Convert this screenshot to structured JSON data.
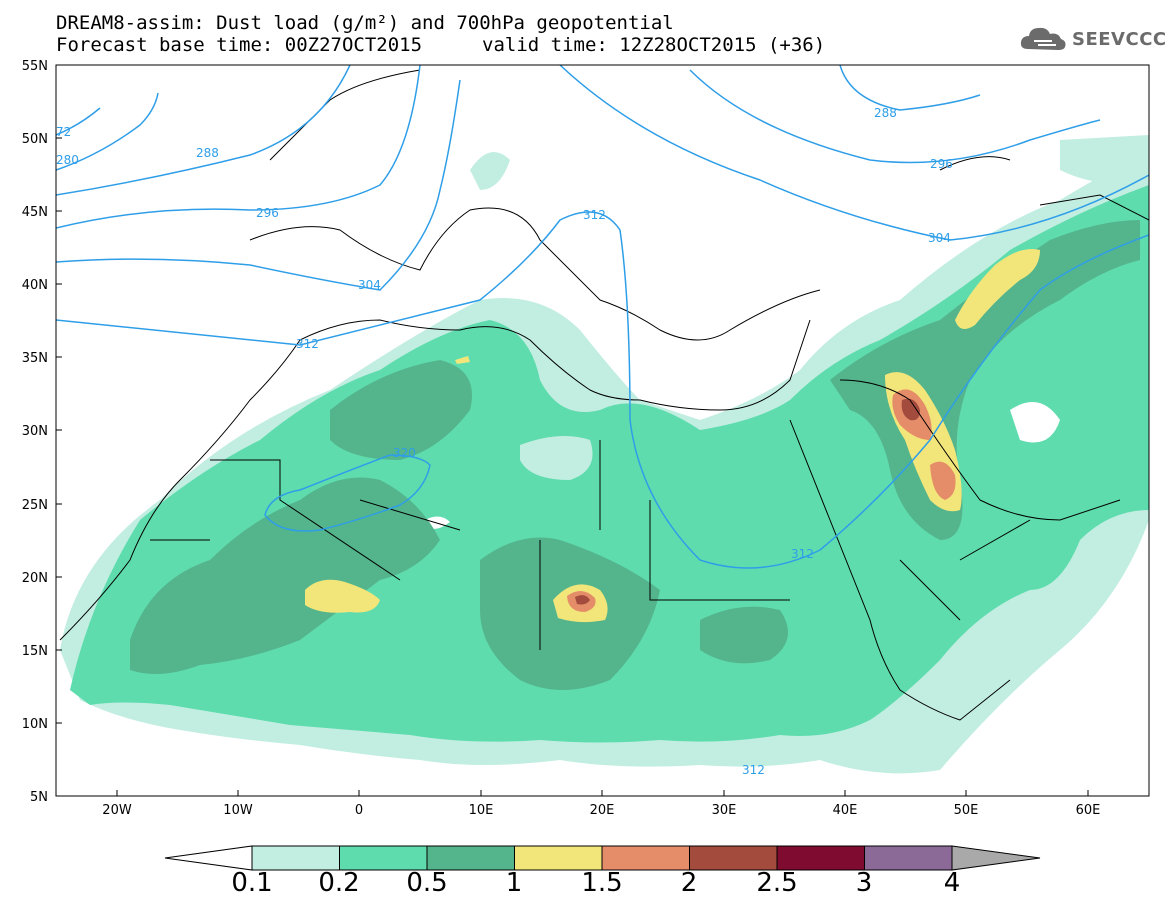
{
  "title": {
    "line1": "DREAM8-assim: Dust load (g/m²) and 700hPa geopotential",
    "line2a": "Forecast base time: 00Z27OCT2015",
    "line2b": "valid time: 12Z28OCT2015 (+36)"
  },
  "logo": {
    "text": "SEEVCCC",
    "icon": "cloud-logo-icon"
  },
  "map": {
    "lat_labels": [
      "55N",
      "50N",
      "45N",
      "40N",
      "35N",
      "30N",
      "25N",
      "20N",
      "15N",
      "10N",
      "5N"
    ],
    "lon_labels": [
      "20W",
      "10W",
      "0",
      "10E",
      "20E",
      "30E",
      "40E",
      "50E",
      "60E"
    ],
    "contour_labels": [
      "72",
      "280",
      "288",
      "296",
      "304",
      "312",
      "320",
      "312",
      "312",
      "288",
      "296",
      "304",
      "312"
    ]
  },
  "colorbar": {
    "ticks": [
      "0.1",
      "0.2",
      "0.5",
      "1",
      "1.5",
      "2",
      "2.5",
      "3",
      "4"
    ],
    "colors": [
      "#c2eee2",
      "#5fdcae",
      "#54b58c",
      "#f2e67b",
      "#e58c69",
      "#a34b3d",
      "#7f0c30",
      "#8b6a98",
      "#a9a9a9"
    ]
  }
}
